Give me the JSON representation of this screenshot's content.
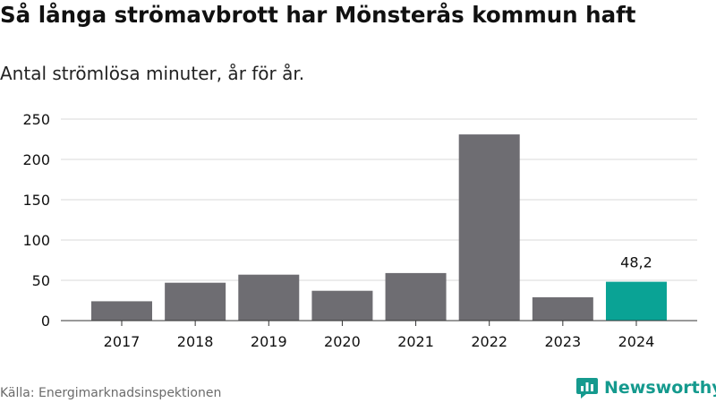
{
  "colors": {
    "bar": "#6e6d72",
    "highlight": "#0aa395",
    "grid": "#d9d9d9",
    "axis": "#333333",
    "text": "#111111",
    "brand": "#159a8e"
  },
  "chart_data": {
    "type": "bar",
    "title": "Så långa strömavbrott har Mönsterås kommun haft",
    "subtitle": "Antal strömlösa minuter, år för år.",
    "xlabel": "",
    "ylabel": "",
    "categories": [
      "2017",
      "2018",
      "2019",
      "2020",
      "2021",
      "2022",
      "2023",
      "2024"
    ],
    "values": [
      24,
      47,
      57,
      37,
      59,
      231,
      29,
      48.2
    ],
    "highlight_index": 7,
    "annotation": {
      "index": 7,
      "text": "48,2"
    },
    "ylim": [
      0,
      250
    ],
    "yticks": [
      0,
      50,
      100,
      150,
      200,
      250
    ],
    "ytick_labels": [
      "0",
      "50",
      "100",
      "150",
      "200",
      "250"
    ],
    "grid": true
  },
  "footer": {
    "source": "Källa: Energimarknadsinspektionen",
    "brand": "Newsworthy",
    "brand_icon": "newsworthy-logo-icon"
  }
}
